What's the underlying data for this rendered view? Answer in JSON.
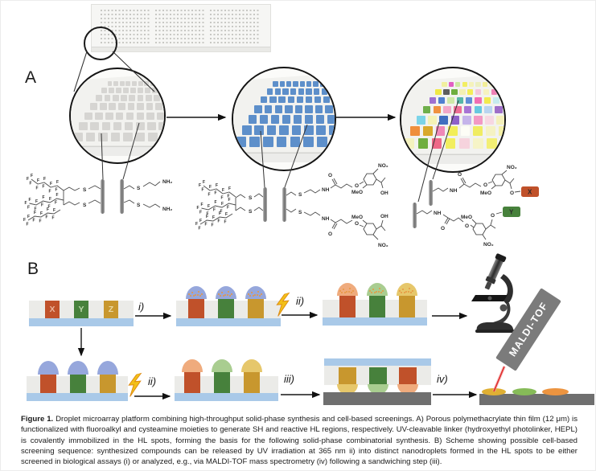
{
  "panels": {
    "a_label": "A",
    "b_label": "B"
  },
  "caption": {
    "label": "Figure 1.",
    "text": " Droplet microarray platform combining high-throughput solid-phase synthesis and cell-based screenings. A) Porous polymethacrylate thin film (12 μm) is functionalized with fluoroalkyl and cysteamine moieties to generate SH and reactive HL regions, respectively. UV-cleavable linker (hydroxyethyl photolinker, HEPL) is covalently immobilized in the HL spots, forming the basis for the following solid-phase combinatorial synthesis. B) Scheme showing possible cell-based screening sequence: synthesized compounds can be released by UV irradiation at 365 nm ii) into distinct nanodroplets formed in the HL spots to be either screened in biological assays (i) or analyzed, e.g., via MALDI-TOF mass spectrometry (iv) following a sandwiching step (iii)."
  },
  "chemistry": {
    "f": "F",
    "s": "S",
    "nh2": "NH₂",
    "nh": "NH",
    "no2": "NO₂",
    "meo": "MeO",
    "oh": "OH",
    "o": "O"
  },
  "compounds": [
    {
      "label": "X",
      "color": "#c0512a",
      "light": "#efab7d",
      "letter": "#e9b49c",
      "droplet": "#ec9440"
    },
    {
      "label": "Y",
      "color": "#47813c",
      "light": "#a9cd90",
      "letter": "#b9d6aa",
      "droplet": "#86bb58"
    },
    {
      "label": "Z",
      "color": "#c8972e",
      "light": "#e6c76b",
      "letter": "#ead9a3",
      "droplet": "#dfaf33"
    }
  ],
  "steps": {
    "s1": "i)",
    "s2": "ii)",
    "s3": "ii)",
    "s4": "iii)",
    "s5": "iv)"
  },
  "maldi": {
    "label": "MALDI-TOF"
  },
  "colors": {
    "slide_dot": "#c8c8c4",
    "dome_blue": "#96a7dc",
    "slab_gray": "#ebebe8",
    "slab_blue": "#a9c9e8",
    "dark_gray": "#6f6f6f",
    "cell": "#e8973f",
    "laser": "#e23434",
    "bolt_yellow": "#f2c018",
    "maldi_gray": "#7b7b7b"
  },
  "microarray": {
    "grid": {
      "rows": 7,
      "cols": 8
    },
    "sh_square_color": "#d6d5d2",
    "hl_square_color": "#5d8fca",
    "circle3_colors": [
      "#f1ef9e",
      "#e25fc3",
      "#cde8a2",
      "#f2ee62",
      "#f5f2bb",
      "#ecefc0",
      "#f2ee96",
      "#f4f3cf",
      "#f0e944",
      "#5d5d5d",
      "#6fae3f",
      "#f3f0b2",
      "#f4ee55",
      "#f3c8da",
      "#f6f2bf",
      "#ee82b6",
      "#9e70d0",
      "#5080d0",
      "#cfe9a8",
      "#57b7a7",
      "#5e8ed6",
      "#f06eb3",
      "#f2ea4d",
      "#c6ebee",
      "#6faf4b",
      "#ef9140",
      "#f2a8c8",
      "#ee6e96",
      "#a873d4",
      "#66c8e0",
      "#b8d4f0",
      "#9e6ec8",
      "#7cd4e8",
      "#f4f2b6",
      "#406ec0",
      "#8e62c8",
      "#c5b4ea",
      "#f299c4",
      "#f7d7e2",
      "#f4f0ba",
      "#ef8f3c",
      "#d9a92c",
      "#f088b8",
      "#f2ee58",
      "#fdfdf6",
      "#f0ec62",
      "#f5f2c3",
      "#f4f0a6",
      "#f4f2bf",
      "#6fae3f",
      "#ee6888",
      "#f2ee5e",
      "#f6d3dd",
      "#f6f4c7",
      "#f3ef74",
      "#f5f3cb"
    ]
  }
}
